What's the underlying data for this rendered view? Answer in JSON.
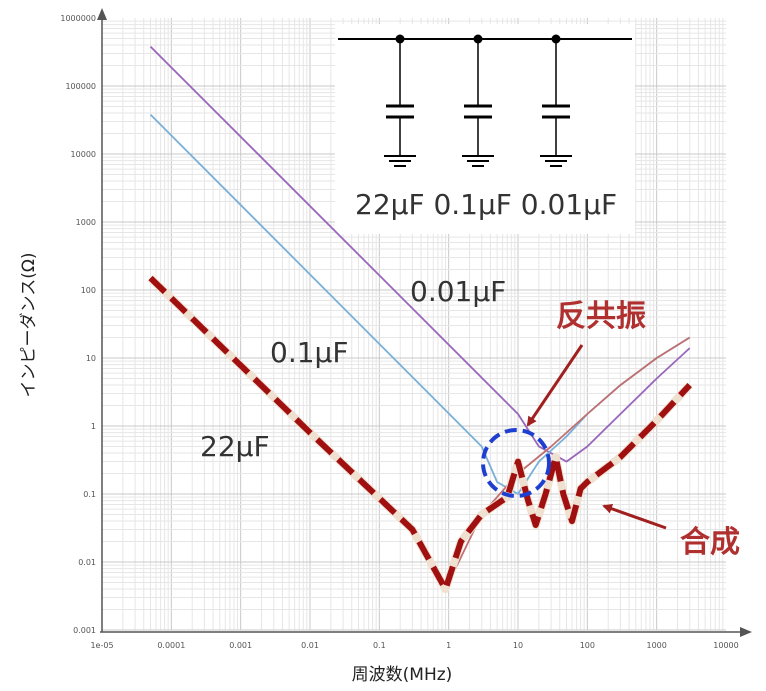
{
  "chart_data": {
    "type": "line",
    "x_scale": "log",
    "y_scale": "log",
    "xlim": [
      1e-05,
      10000
    ],
    "ylim": [
      0.001,
      1000000
    ],
    "xlabel": "周波数(MHz)",
    "ylabel": "インピーダンス(Ω)",
    "x_ticks": [
      "1e-05",
      "0.0001",
      "0.001",
      "0.01",
      "0.1",
      "1",
      "10",
      "100",
      "1000",
      "10000"
    ],
    "y_ticks": [
      "0.001",
      "0.01",
      "0.1",
      "1",
      "10",
      "100",
      "1000",
      "10000",
      "100000",
      "1000000"
    ],
    "grid": true,
    "series": [
      {
        "name": "0.01µF",
        "color": "#9966bb",
        "style": "solid",
        "x": [
          5e-05,
          10,
          20,
          50,
          100,
          300,
          1000,
          3000
        ],
        "y": [
          380000,
          1.5,
          0.5,
          0.3,
          0.5,
          1.5,
          5,
          14
        ]
      },
      {
        "name": "0.1µF",
        "color": "#7ab0d8",
        "style": "solid",
        "x": [
          5e-05,
          3,
          5,
          10,
          20,
          50,
          100,
          300,
          1000,
          3000
        ],
        "y": [
          38000,
          0.5,
          0.15,
          0.1,
          0.3,
          0.7,
          1.5,
          4,
          10,
          20
        ]
      },
      {
        "name": "22µF",
        "color": "#c07070",
        "style": "solid",
        "x": [
          5e-05,
          0.01,
          0.3,
          0.9,
          3,
          10,
          30,
          100,
          300,
          1000,
          3000
        ],
        "y": [
          150,
          0.8,
          0.03,
          0.004,
          0.05,
          0.2,
          0.5,
          1.5,
          4,
          10,
          20
        ]
      },
      {
        "name": "合成",
        "color": "#a01010",
        "style": "dashed",
        "x": [
          5e-05,
          0.01,
          0.3,
          0.9,
          1.5,
          3,
          7,
          10,
          14,
          18,
          25,
          35,
          45,
          60,
          80,
          100,
          300,
          1000,
          3000
        ],
        "y": [
          150,
          0.8,
          0.03,
          0.004,
          0.02,
          0.05,
          0.09,
          0.3,
          0.08,
          0.035,
          0.1,
          0.35,
          0.1,
          0.04,
          0.12,
          0.15,
          0.35,
          1.2,
          4
        ]
      }
    ],
    "annotations": {
      "resonance": "反共振",
      "composite": "合成",
      "curve_labels": [
        "0.01µF",
        "0.1µF",
        "22µF"
      ],
      "circuit_labels": [
        "22µF 0.1µF 0.01µF"
      ]
    }
  }
}
